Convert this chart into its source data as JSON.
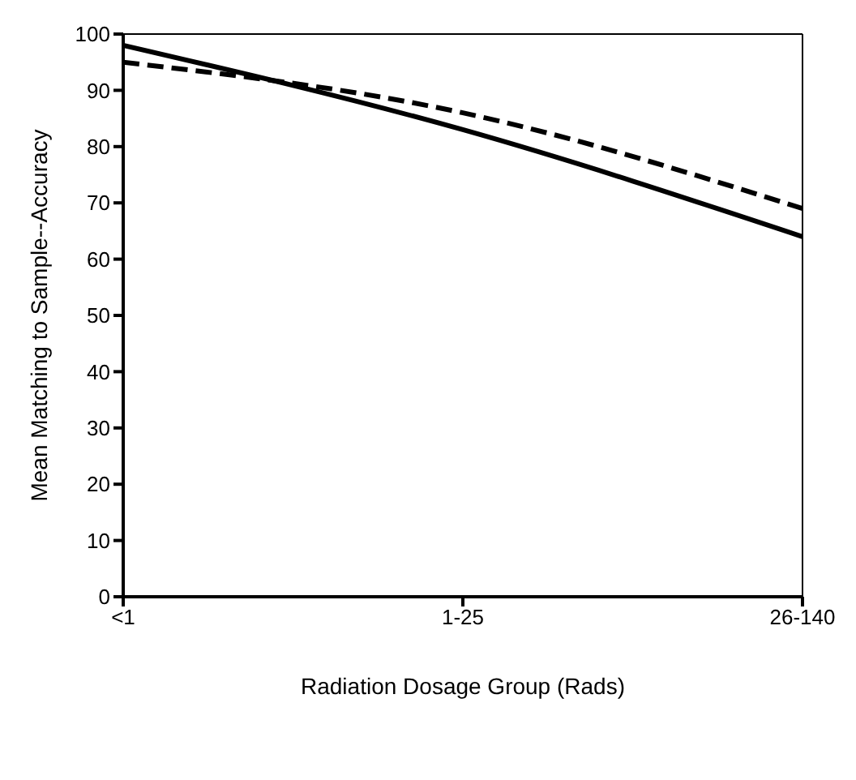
{
  "chart_data": {
    "type": "line",
    "xlabel": "Radiation Dosage Group (Rads)",
    "ylabel": "Mean Matching to Sample--Accuracy",
    "categories": [
      "<1",
      "1-25",
      "26-140"
    ],
    "series": [
      {
        "color": "#000000",
        "line_style": "solid",
        "values": [
          98,
          83,
          64
        ]
      },
      {
        "color": "#000000",
        "line_style": "dashed",
        "values": [
          95,
          86,
          69
        ]
      }
    ],
    "ylim": [
      0,
      100
    ],
    "yticks": [
      0,
      10,
      20,
      30,
      40,
      50,
      60,
      70,
      80,
      90,
      100
    ],
    "marker": "none"
  }
}
